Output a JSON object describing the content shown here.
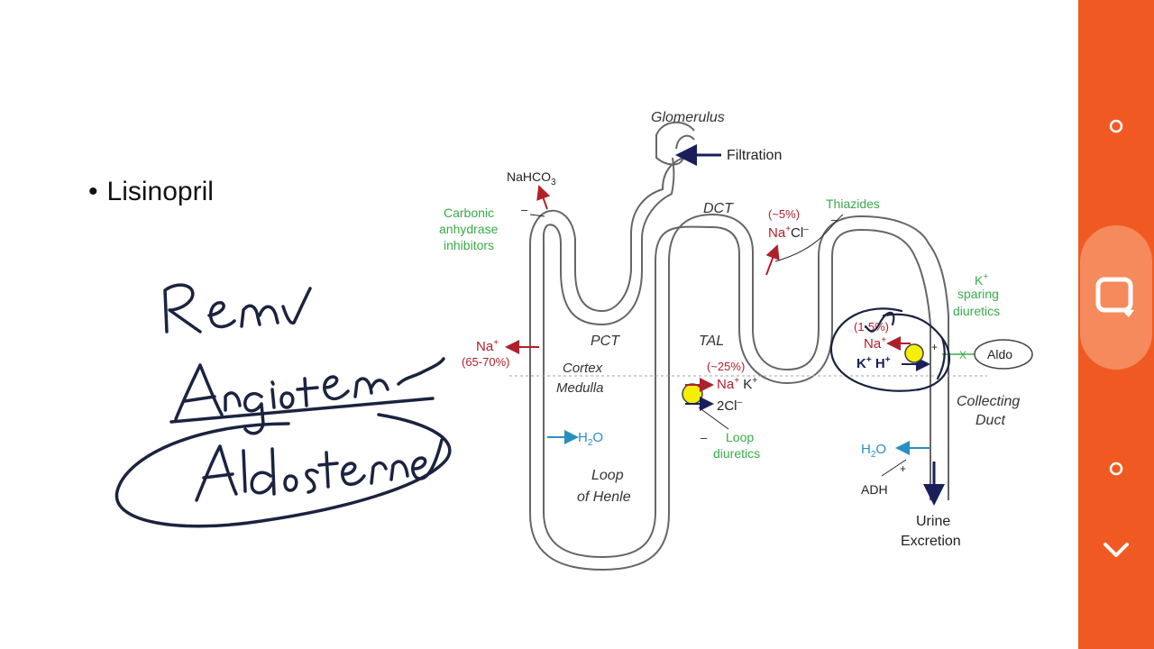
{
  "slide": {
    "bullet": "Lisinopril",
    "handwriting": [
      "Renin",
      "Angiotensin",
      "Aldosterone"
    ]
  },
  "diagram": {
    "glomerulus": "Glomerulus",
    "filtration": "Filtration",
    "nahco3": "NaHCO",
    "nahco3_sub": "3",
    "carbonic": [
      "Carbonic",
      "anhydrase",
      "inhibitors"
    ],
    "dct": "DCT",
    "dct_pct": "(~5%)",
    "dct_ion": "Na",
    "dct_ion2": "Cl",
    "thiazides": "Thiazides",
    "pct": "PCT",
    "tal": "TAL",
    "cortex": "Cortex",
    "medulla": "Medulla",
    "pct_na": "Na",
    "pct_pct": "(65-70%)",
    "tal_pct": "(~25%)",
    "tal_na": "Na",
    "tal_k": "K",
    "tal_cl": "2Cl",
    "loop_diuretics": [
      "Loop",
      "diuretics"
    ],
    "h2o": "H",
    "h2o_o": "O",
    "loop_of_henle": [
      "Loop",
      "of Henle"
    ],
    "cd_pct": "(1-5%)",
    "cd_na": "Na",
    "cd_kh": "K",
    "cd_h": "H",
    "k_sparing_k": "K",
    "k_sparing": [
      "sparing",
      "diuretics"
    ],
    "aldo": "Aldo",
    "collecting_duct": [
      "Collecting",
      "Duct"
    ],
    "cd_h2o": "H",
    "cd_h2o_o": "O",
    "adh": "ADH",
    "urine": [
      "Urine",
      "Excretion"
    ],
    "minus": "–",
    "plus": "+",
    "x": "X"
  },
  "sidebar": {
    "icons": [
      "dot-icon",
      "note-icon",
      "dot-icon",
      "chevron-down-icon"
    ]
  },
  "colors": {
    "sidebar": "#f05a22",
    "sidebar_active": "#f58a5c",
    "red": "#b0202a",
    "green": "#3aaa4a",
    "blue": "#2a8fc0",
    "navy": "#1a1f5c",
    "yellow": "#f4f000"
  }
}
